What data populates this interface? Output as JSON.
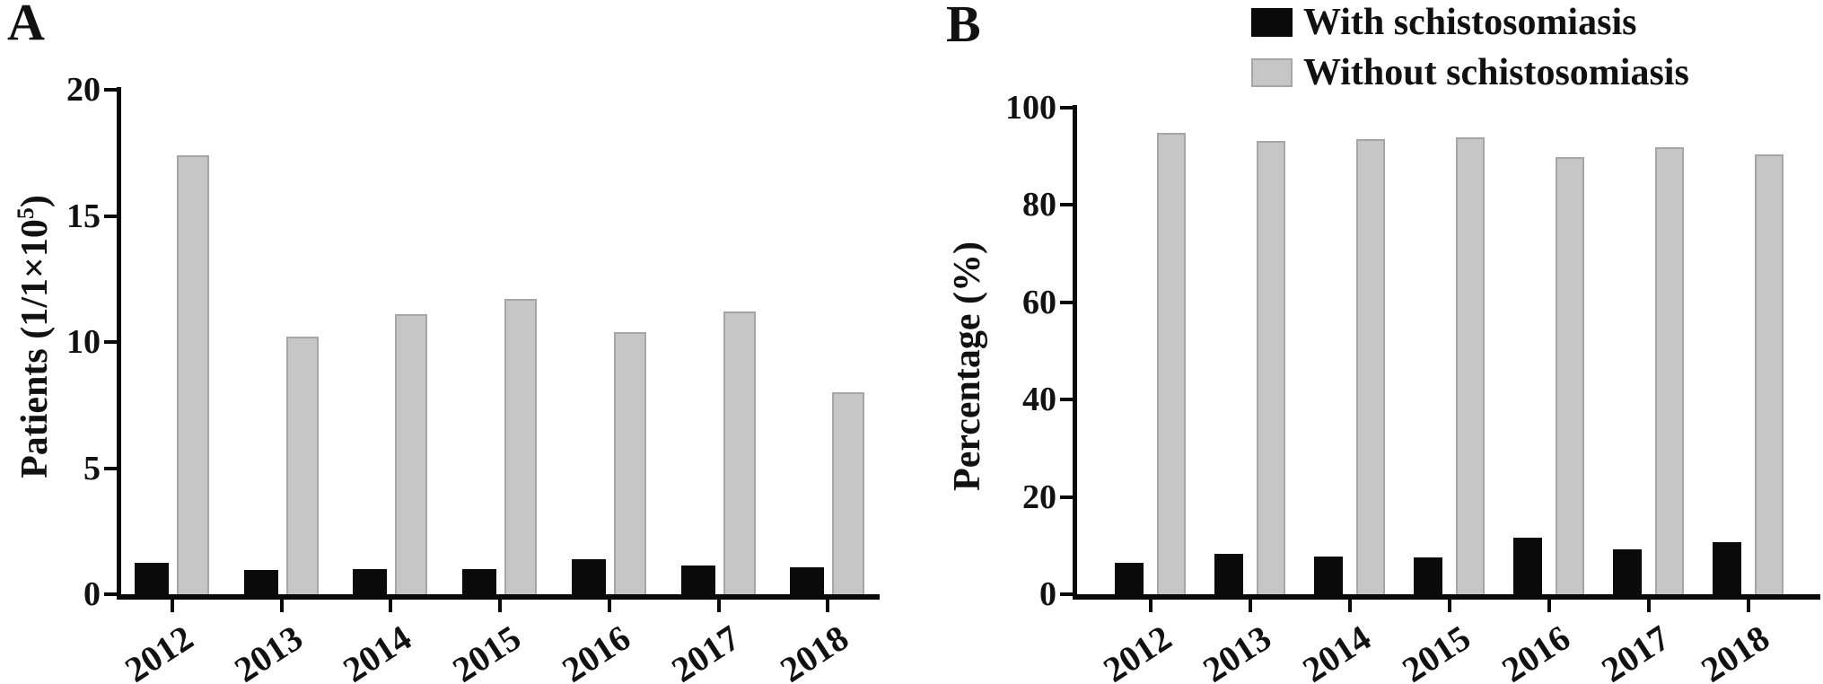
{
  "legend": [
    {
      "label": "With schistosomiasis",
      "color": "#0a0a0a"
    },
    {
      "label": "Without schistosomiasis",
      "color": "#c6c6c6"
    }
  ],
  "colors": {
    "bar_black": "#0a0a0a",
    "bar_gray_fill": "#c6c6c6",
    "bar_gray_border": "#a6a6a6",
    "axis": "#0a0a0a",
    "background": "#ffffff"
  },
  "chart_data": [
    {
      "id": "A",
      "panel_label": "A",
      "type": "bar",
      "title": "",
      "categories": [
        "2012",
        "2013",
        "2014",
        "2015",
        "2016",
        "2017",
        "2018"
      ],
      "series": [
        {
          "name": "With schistosomiasis",
          "color": "#0a0a0a",
          "values": [
            1.25,
            0.95,
            1.0,
            1.0,
            1.4,
            1.15,
            1.05
          ]
        },
        {
          "name": "Without schistosomiasis",
          "color": "#c6c6c6",
          "values": [
            17.4,
            10.2,
            11.1,
            11.7,
            10.4,
            11.2,
            8.0
          ]
        }
      ],
      "xlabel": "",
      "ylabel": "Patients (1/1×10⁵)",
      "ylabel_parts": {
        "prefix": "Patients (1/1×10",
        "sup": "5",
        "suffix": ")"
      },
      "ylim": [
        0,
        20
      ],
      "yticks": [
        0,
        5,
        10,
        15,
        20
      ],
      "grid": false,
      "legend_position": "figure-top-right"
    },
    {
      "id": "B",
      "panel_label": "B",
      "type": "bar",
      "title": "",
      "categories": [
        "2012",
        "2013",
        "2014",
        "2015",
        "2016",
        "2017",
        "2018"
      ],
      "series": [
        {
          "name": "With schistosomiasis",
          "color": "#0a0a0a",
          "values": [
            6.5,
            8.3,
            7.8,
            7.5,
            11.6,
            9.2,
            10.7
          ]
        },
        {
          "name": "Without schistosomiasis",
          "color": "#c6c6c6",
          "values": [
            94.8,
            93.2,
            93.5,
            93.9,
            89.8,
            91.9,
            90.4
          ]
        }
      ],
      "xlabel": "",
      "ylabel": "Percentage (%)",
      "ylabel_parts": {
        "prefix": "Percentage (%)",
        "sup": "",
        "suffix": ""
      },
      "ylim": [
        0,
        100
      ],
      "yticks": [
        0,
        20,
        40,
        60,
        80,
        100
      ],
      "grid": false,
      "legend_position": "figure-top-right"
    }
  ]
}
